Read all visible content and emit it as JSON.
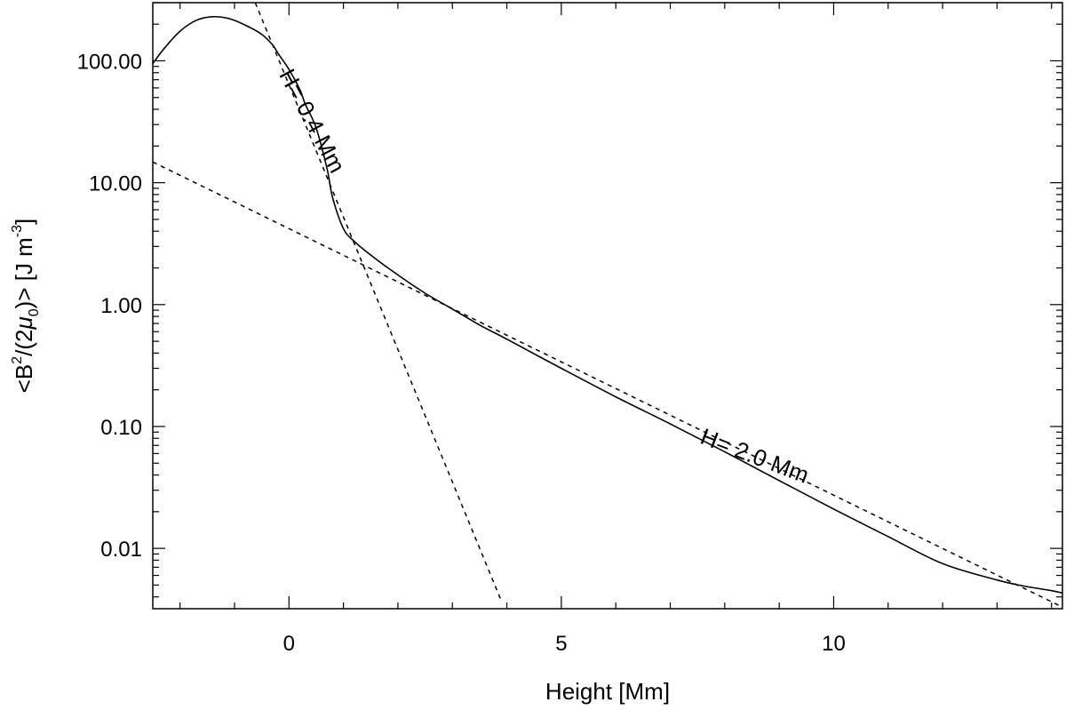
{
  "chart_data": {
    "type": "line",
    "title": "",
    "xlabel": "Height [Mm]",
    "ylabel": {
      "open": "<B",
      "sup1": "2",
      "mid": "/(2",
      "mu": "μ",
      "sub0": "0",
      "close": ")> [J m",
      "sup2": "-3",
      "end": "]"
    },
    "xlim": [
      -2.5,
      14.2
    ],
    "ylim": [
      0.0032,
      300
    ],
    "yscale": "log",
    "x_ticks": [
      0,
      5,
      10
    ],
    "x_tick_labels": [
      "0",
      "5",
      "10"
    ],
    "y_ticks": [
      100,
      10,
      1,
      0.1,
      0.01
    ],
    "y_tick_labels": [
      "100.00",
      "10.00",
      "1.00",
      "0.10",
      "0.01"
    ],
    "grid": false,
    "series": [
      {
        "style": "solid",
        "x": [
          -2.5,
          -2.3,
          -2.0,
          -1.7,
          -1.4,
          -1.1,
          -0.8,
          -0.5,
          -0.3,
          -0.2,
          0.0,
          0.2,
          0.3,
          0.5,
          0.7,
          0.8,
          1.0,
          1.2,
          1.5,
          2.0,
          2.5,
          3.0,
          3.5,
          4.0,
          5.0,
          6.0,
          7.0,
          8.0,
          9.0,
          10.0,
          11.0,
          12.0,
          13.0,
          13.5,
          14.0,
          14.2
        ],
        "y": [
          95,
          125,
          175,
          215,
          230,
          222,
          196,
          165,
          135,
          115,
          85,
          58,
          44,
          28,
          13,
          7.6,
          4.2,
          3.3,
          2.55,
          1.75,
          1.24,
          0.92,
          0.68,
          0.52,
          0.3,
          0.175,
          0.105,
          0.062,
          0.036,
          0.021,
          0.0125,
          0.0075,
          0.0055,
          0.0049,
          0.0045,
          0.0043
        ]
      },
      {
        "style": "dashed",
        "annotation": "H= 0.4 Mm",
        "x": [
          -0.62,
          3.9
        ],
        "y": [
          300,
          0.0037
        ]
      },
      {
        "style": "dashed",
        "annotation": "H= 2.0 Mm",
        "x": [
          -2.5,
          14.2
        ],
        "y": [
          14.8,
          0.0033
        ]
      }
    ],
    "annotations": [
      {
        "text": "H= 0.4 Mm",
        "x": 0.3,
        "y": 30,
        "angle_deg": 62
      },
      {
        "text": "H= 2.0 Mm",
        "x": 8.5,
        "y": 0.05,
        "angle_deg": 21
      }
    ]
  }
}
